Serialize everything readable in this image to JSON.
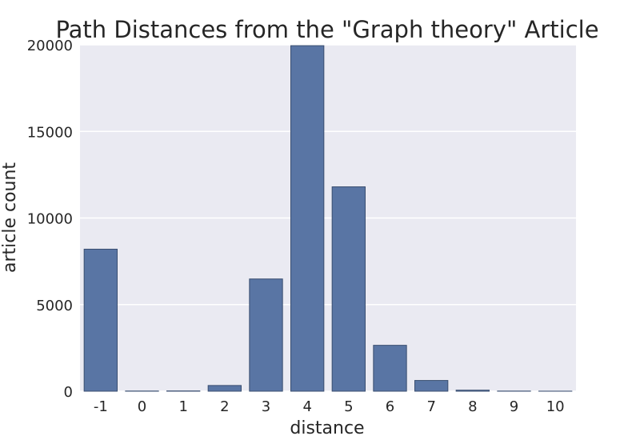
{
  "chart_data": {
    "type": "bar",
    "title": "Path Distances from the \"Graph theory\" Article",
    "xlabel": "distance",
    "ylabel": "article count",
    "categories": [
      "-1",
      "0",
      "1",
      "2",
      "3",
      "4",
      "5",
      "6",
      "7",
      "8",
      "9",
      "10"
    ],
    "values": [
      8200,
      10,
      15,
      330,
      6480,
      19950,
      11800,
      2650,
      620,
      60,
      8,
      3
    ],
    "ylim": [
      0,
      20000
    ],
    "yticks": [
      "0",
      "5000",
      "10000",
      "15000",
      "20000"
    ],
    "yticks_values": [
      0,
      5000,
      10000,
      15000,
      20000
    ],
    "grid": true,
    "colors": {
      "bar": "#5975A4",
      "bar_edge": "#3A4E70",
      "plot_bg": "#EAEAF2",
      "grid": "#FFFFFF",
      "text": "#262626"
    }
  }
}
